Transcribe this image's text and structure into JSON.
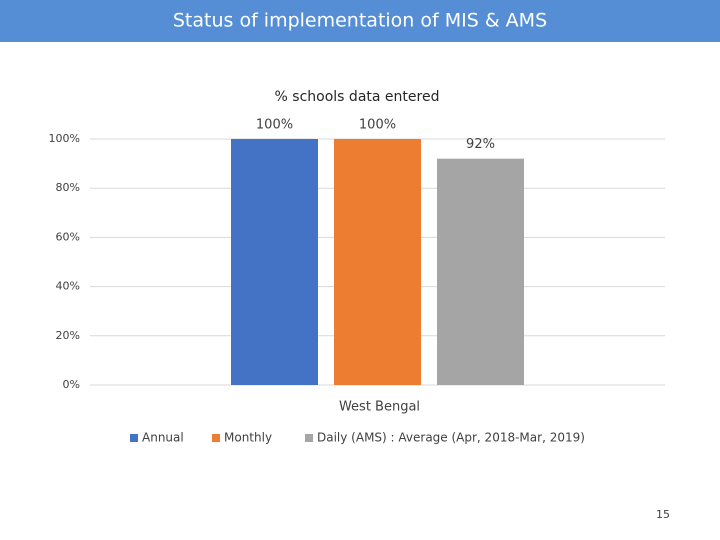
{
  "header": {
    "title": "Status of implementation of MIS & AMS"
  },
  "chart_data": {
    "type": "bar",
    "title": "% schools data entered",
    "categories": [
      "West Bengal"
    ],
    "series": [
      {
        "name": "Annual",
        "color": "#4472c4",
        "values": [
          100
        ],
        "value_labels": [
          "100%"
        ]
      },
      {
        "name": "Monthly",
        "color": "#ed7d31",
        "values": [
          100
        ],
        "value_labels": [
          "100%"
        ]
      },
      {
        "name": "Daily (AMS) : Average (Apr, 2018-Mar, 2019)",
        "color": "#a5a5a5",
        "values": [
          92
        ],
        "value_labels": [
          "92%"
        ]
      }
    ],
    "ylim": [
      0,
      100
    ],
    "yticks": [
      {
        "value": 0,
        "label": "0%"
      },
      {
        "value": 20,
        "label": "20%"
      },
      {
        "value": 40,
        "label": "40%"
      },
      {
        "value": 60,
        "label": "60%"
      },
      {
        "value": 80,
        "label": "80%"
      },
      {
        "value": 100,
        "label": "100%"
      }
    ],
    "grid": true,
    "legend": "bottom"
  },
  "page_number": 15
}
